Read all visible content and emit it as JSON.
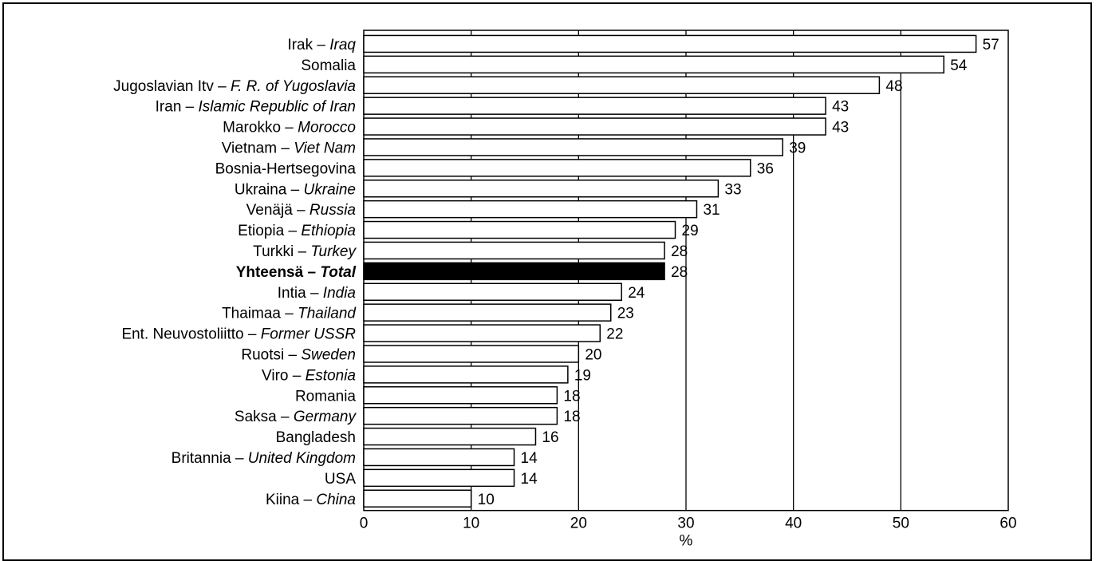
{
  "chart_data": {
    "type": "bar",
    "orientation": "horizontal",
    "categories": [
      {
        "label": "Irak",
        "label_en": "Iraq"
      },
      {
        "label": "Somalia",
        "label_en": ""
      },
      {
        "label": "Jugoslavian Itv",
        "label_en": "F. R. of Yugoslavia"
      },
      {
        "label": "Iran",
        "label_en": "Islamic Republic of Iran"
      },
      {
        "label": "Marokko",
        "label_en": "Morocco"
      },
      {
        "label": "Vietnam",
        "label_en": "Viet Nam"
      },
      {
        "label": "Bosnia-Hertsegovina",
        "label_en": ""
      },
      {
        "label": "Ukraina",
        "label_en": "Ukraine"
      },
      {
        "label": "Venäjä",
        "label_en": "Russia"
      },
      {
        "label": "Etiopia",
        "label_en": "Ethiopia"
      },
      {
        "label": "Turkki",
        "label_en": "Turkey"
      },
      {
        "label": "Yhteensä",
        "label_en": "Total",
        "highlight": true
      },
      {
        "label": "Intia",
        "label_en": "India"
      },
      {
        "label": "Thaimaa",
        "label_en": "Thailand"
      },
      {
        "label": "Ent. Neuvostoliitto",
        "label_en": "Former USSR"
      },
      {
        "label": "Ruotsi",
        "label_en": "Sweden"
      },
      {
        "label": "Viro",
        "label_en": "Estonia"
      },
      {
        "label": "Romania",
        "label_en": ""
      },
      {
        "label": "Saksa",
        "label_en": "Germany"
      },
      {
        "label": "Bangladesh",
        "label_en": ""
      },
      {
        "label": "Britannia",
        "label_en": "United Kingdom"
      },
      {
        "label": "USA",
        "label_en": ""
      },
      {
        "label": "Kiina",
        "label_en": "China"
      }
    ],
    "values": [
      57,
      54,
      48,
      43,
      43,
      39,
      36,
      33,
      31,
      29,
      28,
      28,
      24,
      23,
      22,
      20,
      19,
      18,
      18,
      16,
      14,
      14,
      10
    ],
    "separator": "–",
    "xlabel": "%",
    "ylabel": "",
    "title": "",
    "xlim": [
      0,
      60
    ],
    "xticks": [
      0,
      10,
      20,
      30,
      40,
      50,
      60
    ],
    "grid": "vertical",
    "colors": {
      "bar_fill": "#ffffff",
      "highlight_fill": "#000000",
      "stroke": "#000000"
    }
  }
}
